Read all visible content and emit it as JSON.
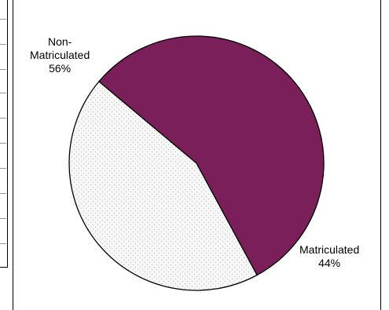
{
  "chart_data": {
    "type": "pie",
    "slices": [
      {
        "label": "Non-\nMatriculated",
        "percent_label": "56%",
        "value": 56,
        "color": "#7b1f5a",
        "pattern": "solid"
      },
      {
        "label": "Matriculated",
        "percent_label": "44%",
        "value": 44,
        "color": "#f2f2f2",
        "pattern": "dots"
      }
    ],
    "start_angle_deg": -140,
    "direction": "clockwise",
    "legend": "none"
  }
}
